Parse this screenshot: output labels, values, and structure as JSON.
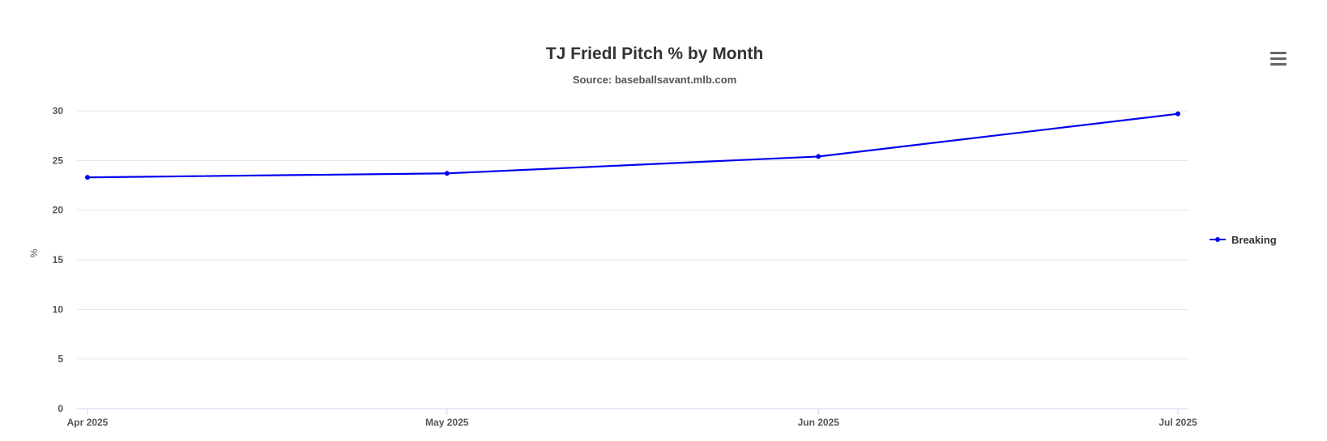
{
  "chart_data": {
    "type": "line",
    "title": "TJ Friedl Pitch % by Month",
    "subtitle": "Source: baseballsavant.mlb.com",
    "xlabel": "",
    "ylabel": "%",
    "x": [
      "2025-04",
      "2025-05",
      "2025-06",
      "2025-07"
    ],
    "x_tick_labels": [
      "Apr 2025",
      "May 2025",
      "Jun 2025",
      "Jul 2025"
    ],
    "y_ticks": [
      0,
      5,
      10,
      15,
      20,
      25,
      30
    ],
    "ylim": [
      0,
      30
    ],
    "grid": true,
    "legend_position": "right",
    "series": [
      {
        "name": "Breaking",
        "color": "#0000ee",
        "values": [
          23.3,
          23.7,
          25.4,
          29.7
        ]
      }
    ]
  },
  "menu_icon": "hamburger-menu-icon"
}
